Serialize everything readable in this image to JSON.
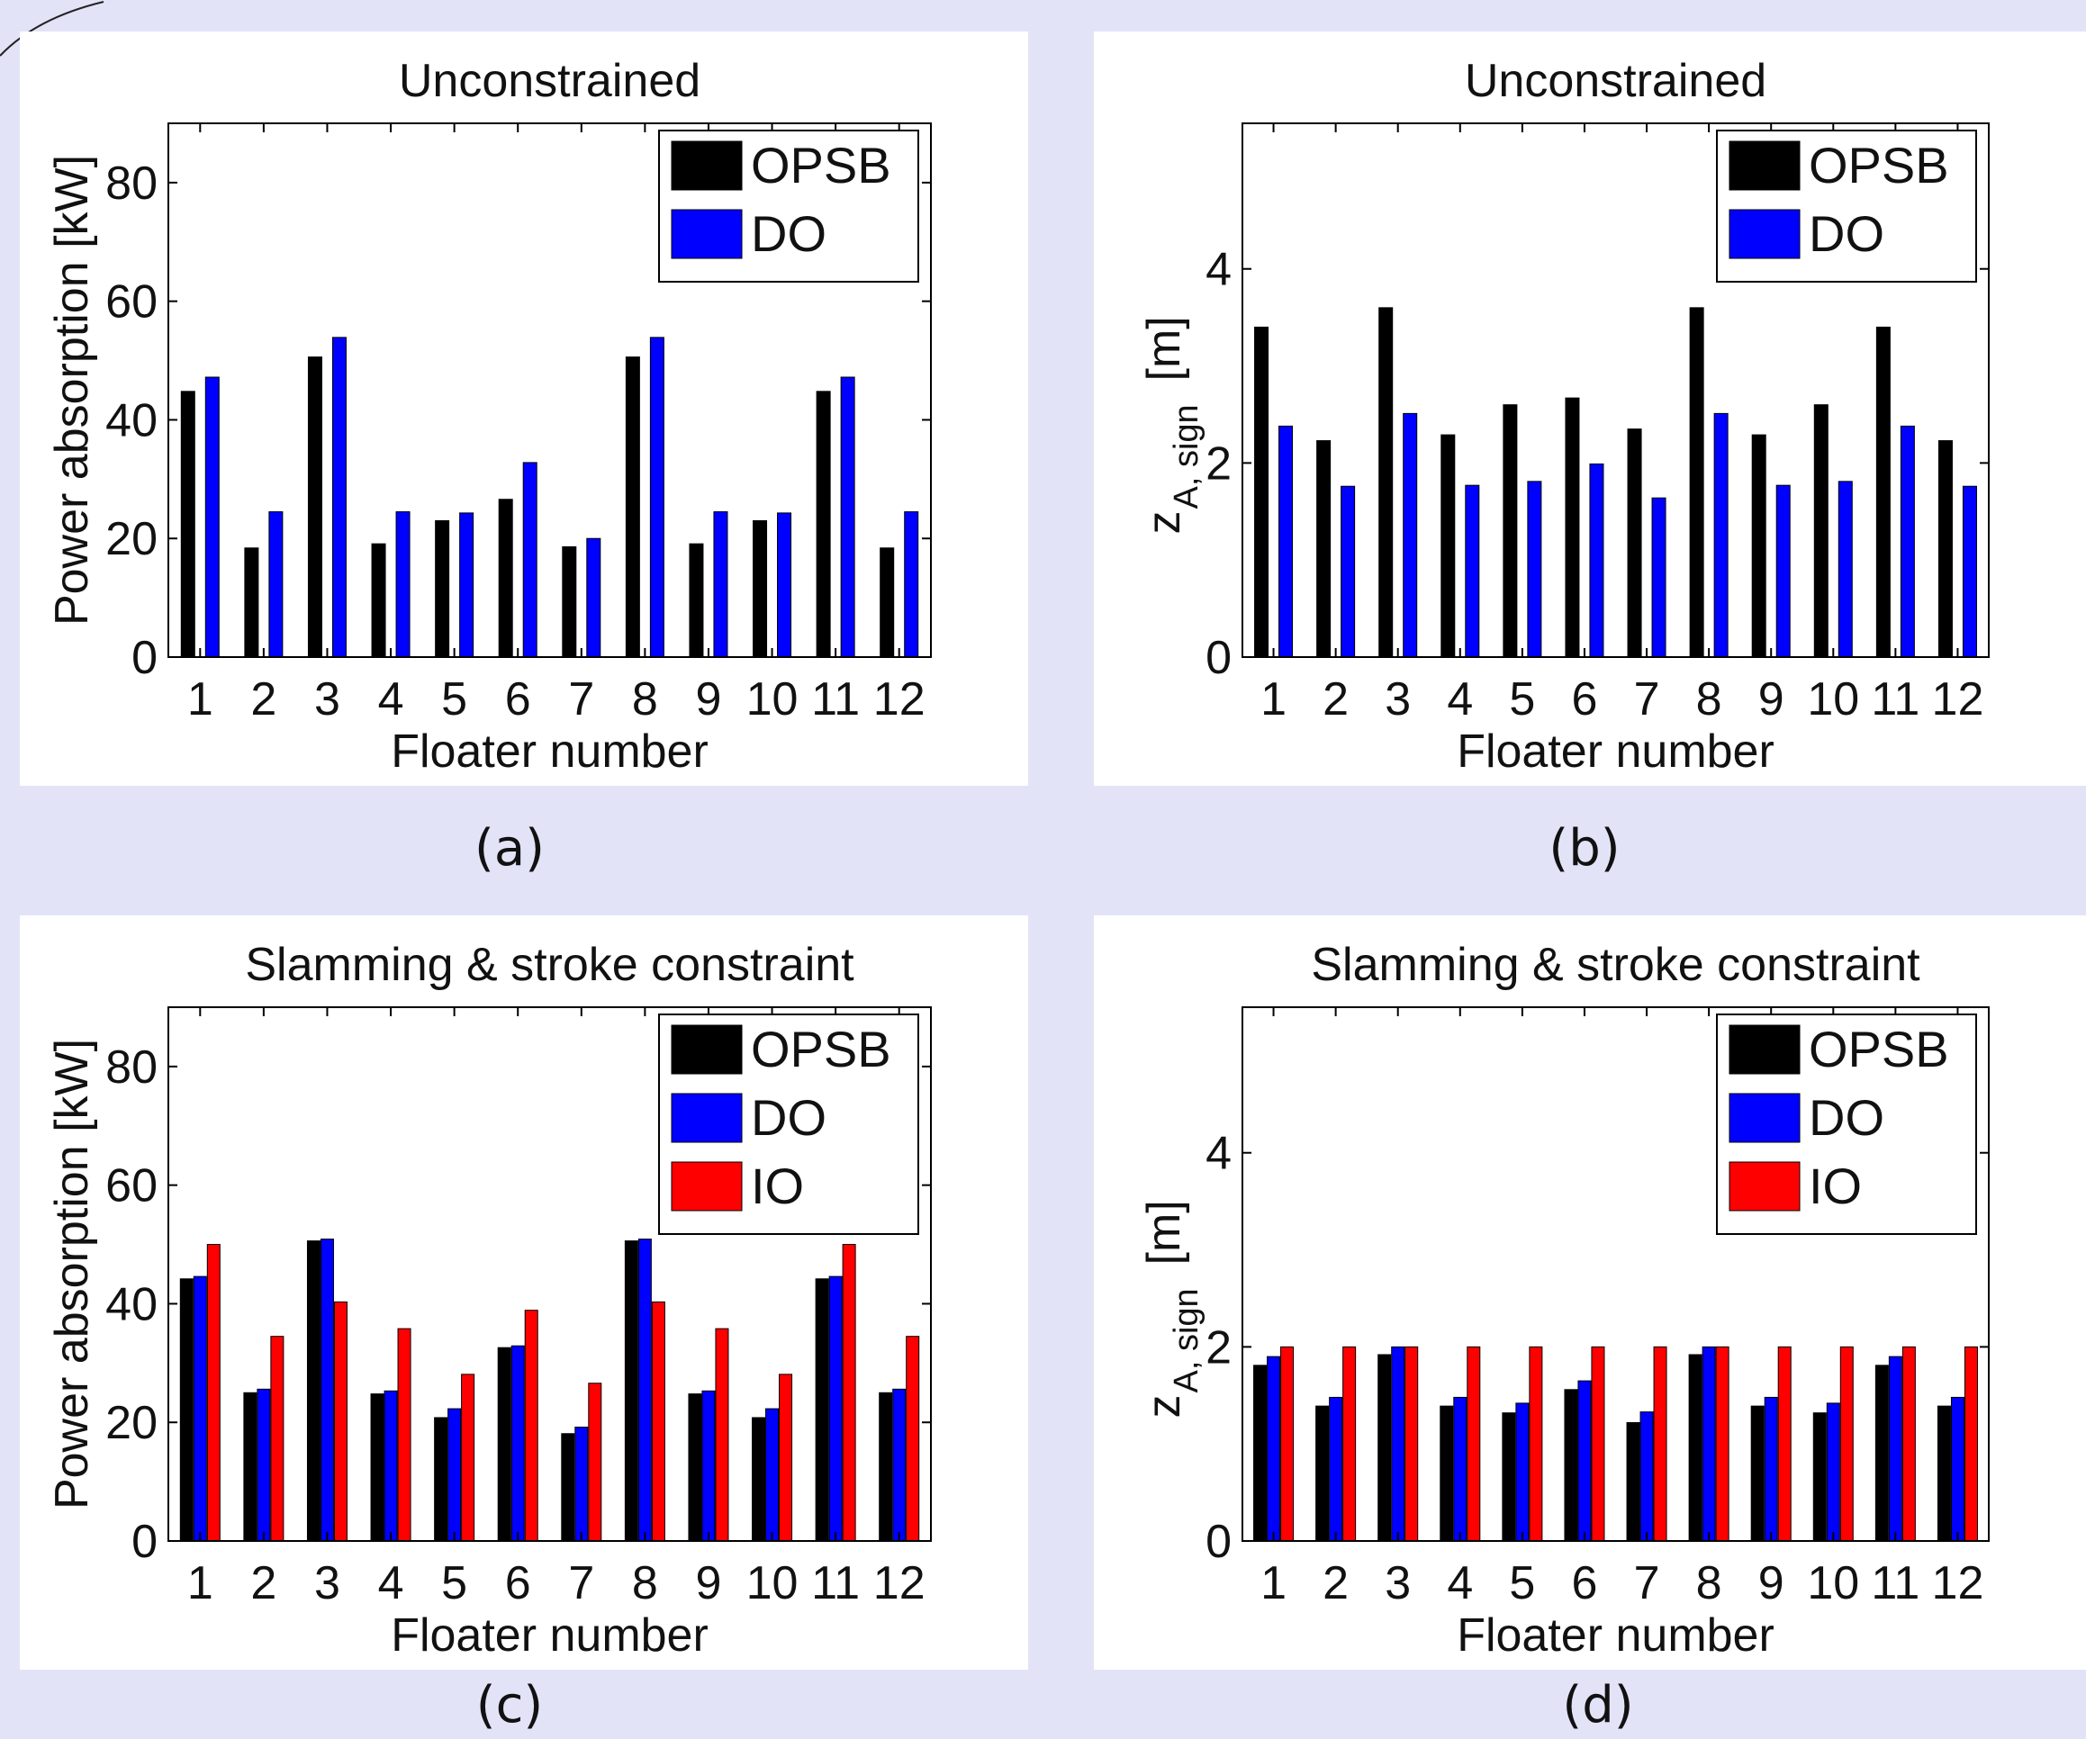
{
  "chart_data": [
    {
      "id": "a",
      "type": "bar",
      "title": "Unconstrained",
      "xlabel": "Floater number",
      "ylabel": "Power absorption [kW]",
      "ylim": [
        0,
        90
      ],
      "yticks": [
        0,
        20,
        40,
        60,
        80
      ],
      "categories": [
        "1",
        "2",
        "3",
        "4",
        "5",
        "6",
        "7",
        "8",
        "9",
        "10",
        "11",
        "12"
      ],
      "series": [
        {
          "name": "OPSB",
          "color": "#000000",
          "values": [
            44.8,
            18.4,
            50.6,
            19.1,
            23.0,
            26.6,
            18.6,
            50.6,
            19.1,
            23.0,
            44.8,
            18.4
          ]
        },
        {
          "name": "DO",
          "color": "#0000ff",
          "values": [
            47.2,
            24.5,
            53.9,
            24.5,
            24.3,
            32.8,
            20.0,
            53.9,
            24.5,
            24.3,
            47.2,
            24.5
          ]
        }
      ],
      "legend_position": "top-right",
      "grid": false,
      "caption": "(a)"
    },
    {
      "id": "b",
      "type": "bar",
      "title": "Unconstrained",
      "xlabel": "Floater number",
      "ylabel": "z",
      "ylabel_subscript": "A, sign",
      "ylabel_suffix": "[m]",
      "ylim": [
        0,
        5.5
      ],
      "yticks": [
        0,
        2,
        4
      ],
      "categories": [
        "1",
        "2",
        "3",
        "4",
        "5",
        "6",
        "7",
        "8",
        "9",
        "10",
        "11",
        "12"
      ],
      "series": [
        {
          "name": "OPSB",
          "color": "#000000",
          "values": [
            3.4,
            2.23,
            3.6,
            2.29,
            2.6,
            2.67,
            2.35,
            3.6,
            2.29,
            2.6,
            3.4,
            2.23
          ]
        },
        {
          "name": "DO",
          "color": "#0000ff",
          "values": [
            2.38,
            1.76,
            2.51,
            1.77,
            1.81,
            1.99,
            1.64,
            2.51,
            1.77,
            1.81,
            2.38,
            1.76
          ]
        }
      ],
      "legend_position": "top-right",
      "grid": false,
      "caption": "(b)"
    },
    {
      "id": "c",
      "type": "bar",
      "title": "Slamming & stroke constraint",
      "xlabel": "Floater number",
      "ylabel": "Power absorption [kW]",
      "ylim": [
        0,
        90
      ],
      "yticks": [
        0,
        20,
        40,
        60,
        80
      ],
      "categories": [
        "1",
        "2",
        "3",
        "4",
        "5",
        "6",
        "7",
        "8",
        "9",
        "10",
        "11",
        "12"
      ],
      "series": [
        {
          "name": "OPSB",
          "color": "#000000",
          "values": [
            44.2,
            25.0,
            50.6,
            24.8,
            20.8,
            32.6,
            18.1,
            50.6,
            24.8,
            20.8,
            44.2,
            25.0
          ]
        },
        {
          "name": "DO",
          "color": "#0000ff",
          "values": [
            44.6,
            25.6,
            50.9,
            25.3,
            22.3,
            32.9,
            19.2,
            50.9,
            25.3,
            22.3,
            44.6,
            25.6
          ]
        },
        {
          "name": "IO",
          "color": "#ff0000",
          "values": [
            50.0,
            34.5,
            40.3,
            35.8,
            28.1,
            38.9,
            26.6,
            40.3,
            35.8,
            28.1,
            50.0,
            34.5
          ]
        }
      ],
      "legend_position": "top-right",
      "grid": false,
      "caption": "(c)"
    },
    {
      "id": "d",
      "type": "bar",
      "title": "Slamming & stroke constraint",
      "xlabel": "Floater number",
      "ylabel": "z",
      "ylabel_subscript": "A, sign",
      "ylabel_suffix": "[m]",
      "ylim": [
        0,
        5.5
      ],
      "yticks": [
        0,
        2,
        4
      ],
      "categories": [
        "1",
        "2",
        "3",
        "4",
        "5",
        "6",
        "7",
        "8",
        "9",
        "10",
        "11",
        "12"
      ],
      "series": [
        {
          "name": "OPSB",
          "color": "#000000",
          "values": [
            1.81,
            1.39,
            1.92,
            1.39,
            1.32,
            1.56,
            1.22,
            1.92,
            1.39,
            1.32,
            1.81,
            1.39
          ]
        },
        {
          "name": "DO",
          "color": "#0000ff",
          "values": [
            1.9,
            1.48,
            2.0,
            1.48,
            1.42,
            1.65,
            1.33,
            2.0,
            1.48,
            1.42,
            1.9,
            1.48
          ]
        },
        {
          "name": "IO",
          "color": "#ff0000",
          "values": [
            2.0,
            2.0,
            2.0,
            2.0,
            2.0,
            2.0,
            2.0,
            2.0,
            2.0,
            2.0,
            2.0,
            2.0
          ]
        }
      ],
      "legend_position": "top-right",
      "grid": false,
      "caption": "(d)"
    }
  ]
}
